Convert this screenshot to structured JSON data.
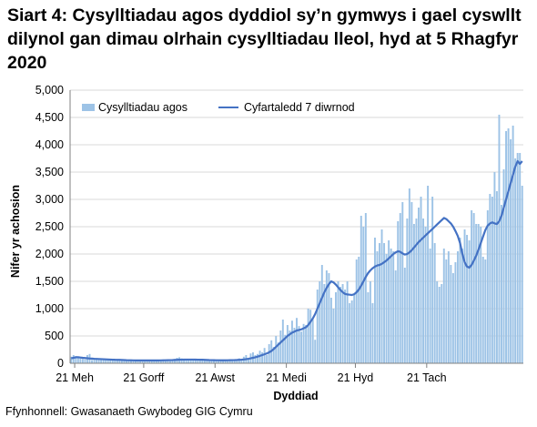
{
  "title": "Siart 4: Cysylltiadau agos dyddiol sy’n gymwys i gael cyswllt dilynol gan dimau olrhain cysylltiadau lleol, hyd at 5 Rhagfyr 2020",
  "source": "Ffynhonnell: Gwasanaeth Gwybodeg GIG Cymru",
  "chart_data": {
    "type": "bar",
    "title": "Siart 4: Cysylltiadau agos dyddiol sy’n gymwys i gael cyswllt dilynol gan dimau olrhain cysylltiadau lleol, hyd at 5 Rhagfyr 2020",
    "xlabel": "Dyddiad",
    "ylabel": "Nifer yr achosion",
    "ylim": [
      0,
      5000
    ],
    "yticks": [
      "0",
      "500",
      "1,000",
      "1,500",
      "2,000",
      "2,500",
      "3,000",
      "3,500",
      "4,000",
      "4,500",
      "5,000"
    ],
    "xticks": [
      "21 Meh",
      "21 Gorff",
      "21 Awst",
      "21 Medi",
      "21 Hyd",
      "21 Tach"
    ],
    "x_start": "2020-06-19",
    "x_end": "2020-12-05",
    "grid": "horizontal",
    "legend_position": "top-left",
    "colors": {
      "bars": "#9dc3e6",
      "line": "#4472c4"
    },
    "series": [
      {
        "name": "Cysylltiadau agos",
        "type": "bar",
        "values": [
          120,
          150,
          130,
          110,
          90,
          80,
          70,
          150,
          170,
          60,
          90,
          80,
          90,
          80,
          80,
          70,
          70,
          60,
          60,
          50,
          60,
          50,
          50,
          50,
          40,
          50,
          50,
          50,
          40,
          50,
          50,
          50,
          50,
          60,
          50,
          50,
          40,
          60,
          50,
          60,
          50,
          70,
          60,
          40,
          60,
          80,
          100,
          110,
          90,
          80,
          60,
          70,
          80,
          60,
          60,
          50,
          60,
          50,
          50,
          50,
          40,
          50,
          60,
          50,
          40,
          50,
          60,
          50,
          50,
          60,
          70,
          60,
          60,
          90,
          80,
          120,
          150,
          80,
          180,
          200,
          150,
          170,
          230,
          200,
          280,
          150,
          350,
          420,
          300,
          500,
          380,
          600,
          800,
          520,
          700,
          600,
          780,
          650,
          830,
          680,
          580,
          720,
          700,
          1000,
          980,
          800,
          430,
          1350,
          1500,
          1800,
          1450,
          1700,
          1650,
          1200,
          1000,
          1300,
          1500,
          1400,
          1450,
          1350,
          1500,
          1100,
          1150,
          1250,
          1900,
          1950,
          2700,
          2500,
          2750,
          1300,
          1500,
          1100,
          2300,
          2050,
          2200,
          2450,
          2200,
          2000,
          2250,
          2100,
          2050,
          1700,
          2600,
          2750,
          2950,
          1750,
          2650,
          3200,
          2950,
          2550,
          2650,
          2850,
          3050,
          2650,
          2500,
          3250,
          2100,
          3050,
          2200,
          1500,
          1400,
          1450,
          2100,
          1900,
          2050,
          1800,
          1650,
          1850,
          2050,
          2300,
          2100,
          2450,
          2350,
          2250,
          2800,
          2750,
          2550,
          2550,
          2500,
          1950,
          1900,
          2800,
          3100,
          3050,
          3500,
          3150,
          4550,
          2900,
          3550,
          4250,
          4300,
          4100,
          4350,
          3750,
          3850,
          3850,
          3250
        ]
      },
      {
        "name": "Cyfartaledd 7 diwrnod",
        "type": "line",
        "values": [
          90,
          100,
          110,
          110,
          105,
          100,
          96,
          92,
          88,
          85,
          82,
          80,
          78,
          76,
          74,
          72,
          70,
          68,
          66,
          64,
          63,
          62,
          60,
          58,
          56,
          55,
          54,
          53,
          52,
          52,
          52,
          52,
          52,
          52,
          52,
          52,
          52,
          52,
          52,
          53,
          54,
          55,
          56,
          57,
          58,
          60,
          62,
          64,
          66,
          67,
          68,
          68,
          68,
          68,
          67,
          66,
          65,
          64,
          62,
          60,
          58,
          57,
          56,
          55,
          55,
          54,
          54,
          54,
          55,
          56,
          57,
          58,
          60,
          63,
          66,
          70,
          75,
          82,
          90,
          100,
          110,
          122,
          135,
          150,
          165,
          180,
          200,
          225,
          260,
          300,
          340,
          380,
          420,
          460,
          500,
          530,
          560,
          580,
          600,
          610,
          620,
          640,
          660,
          700,
          760,
          820,
          900,
          1000,
          1100,
          1200,
          1300,
          1380,
          1450,
          1500,
          1480,
          1440,
          1390,
          1340,
          1300,
          1270,
          1260,
          1255,
          1250,
          1265,
          1300,
          1350,
          1420,
          1500,
          1580,
          1650,
          1700,
          1740,
          1770,
          1790,
          1800,
          1820,
          1850,
          1880,
          1920,
          1960,
          2000,
          2030,
          2050,
          2040,
          2010,
          1990,
          2000,
          2030,
          2070,
          2120,
          2170,
          2220,
          2260,
          2300,
          2340,
          2380,
          2420,
          2460,
          2500,
          2540,
          2580,
          2620,
          2660,
          2640,
          2600,
          2560,
          2500,
          2420,
          2330,
          2200,
          2000,
          1850,
          1770,
          1750,
          1800,
          1880,
          1970,
          2080,
          2200,
          2320,
          2440,
          2520,
          2560,
          2580,
          2560,
          2550,
          2600,
          2700,
          2850,
          3000,
          3150,
          3300,
          3450,
          3600,
          3700,
          3650,
          3700
        ]
      }
    ]
  }
}
